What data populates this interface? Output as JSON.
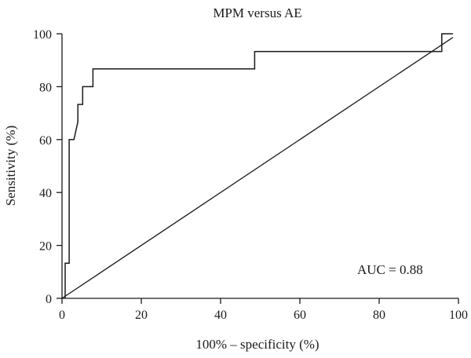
{
  "chart_data": {
    "type": "line",
    "title": "MPM versus AE",
    "xlabel": "100% – specificity (%)",
    "ylabel": "Sensitivity (%)",
    "xlim": [
      0,
      100
    ],
    "ylim": [
      0,
      100
    ],
    "x_ticks": [
      "0",
      "20",
      "40",
      "60",
      "80",
      "100"
    ],
    "y_ticks": [
      "0",
      "20",
      "40",
      "60",
      "80",
      "100"
    ],
    "annotation": "AUC = 0.88",
    "grid": false,
    "series": [
      {
        "role": "roc-curve",
        "x": [
          0.8,
          0.8,
          1.8,
          1.8,
          3.0,
          4.0,
          4.0,
          5.2,
          5.2,
          7.8,
          7.8,
          48.6,
          48.6,
          95.8,
          95.8,
          98.6
        ],
        "y": [
          0,
          13.3,
          13.3,
          60,
          60,
          66.7,
          73.3,
          73.3,
          80,
          80,
          86.7,
          86.7,
          93.3,
          93.3,
          100,
          100
        ]
      },
      {
        "role": "reference-line",
        "x": [
          0,
          98.6
        ],
        "y": [
          0,
          98.6
        ]
      }
    ]
  }
}
